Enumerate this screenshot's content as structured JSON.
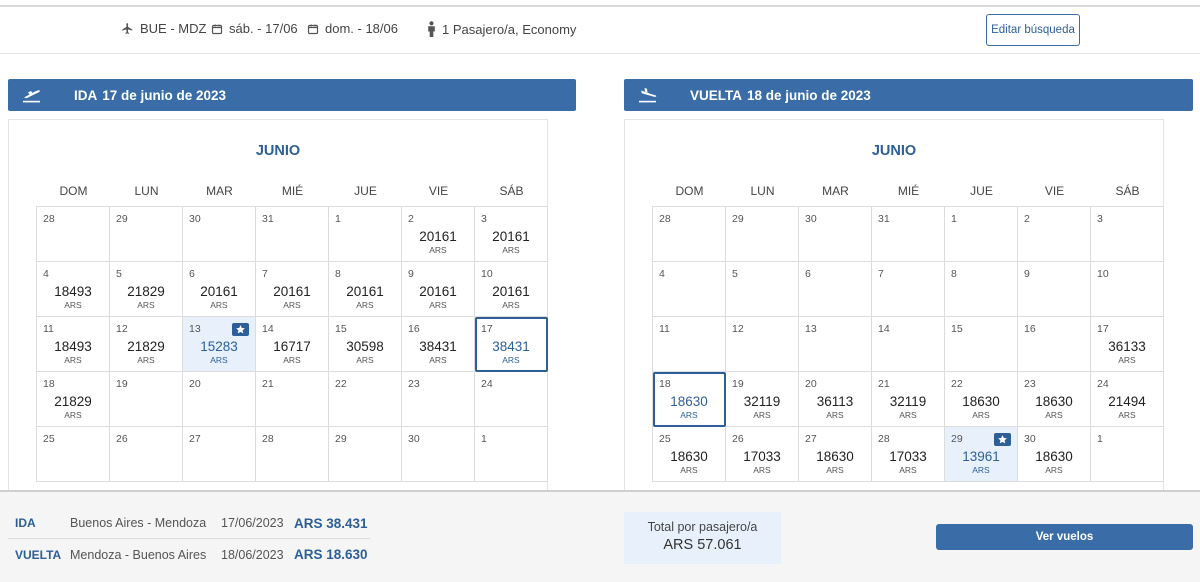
{
  "search": {
    "route": "BUE - MDZ",
    "depart_date": "sáb. - 17/06",
    "return_date": "dom. - 18/06",
    "passengers": "1 Pasajero/a, Economy",
    "edit_label": "Editar búsqueda"
  },
  "outbound": {
    "leg_label": "IDA",
    "date_label": "17 de junio de 2023",
    "month": "JUNIO",
    "weekdays": [
      "DOM",
      "LUN",
      "MAR",
      "MIÉ",
      "JUE",
      "VIE",
      "SÁB"
    ],
    "currency": "ARS",
    "cells": [
      {
        "day": "28",
        "price": ""
      },
      {
        "day": "29",
        "price": ""
      },
      {
        "day": "30",
        "price": ""
      },
      {
        "day": "31",
        "price": ""
      },
      {
        "day": "1",
        "price": ""
      },
      {
        "day": "2",
        "price": "20161"
      },
      {
        "day": "3",
        "price": "20161"
      },
      {
        "day": "4",
        "price": "18493"
      },
      {
        "day": "5",
        "price": "21829"
      },
      {
        "day": "6",
        "price": "20161"
      },
      {
        "day": "7",
        "price": "20161"
      },
      {
        "day": "8",
        "price": "20161"
      },
      {
        "day": "9",
        "price": "20161"
      },
      {
        "day": "10",
        "price": "20161"
      },
      {
        "day": "11",
        "price": "18493"
      },
      {
        "day": "12",
        "price": "21829"
      },
      {
        "day": "13",
        "price": "15283",
        "best": true
      },
      {
        "day": "14",
        "price": "16717"
      },
      {
        "day": "15",
        "price": "30598"
      },
      {
        "day": "16",
        "price": "38431"
      },
      {
        "day": "17",
        "price": "38431",
        "selected": true
      },
      {
        "day": "18",
        "price": "21829"
      },
      {
        "day": "19",
        "price": ""
      },
      {
        "day": "20",
        "price": ""
      },
      {
        "day": "21",
        "price": ""
      },
      {
        "day": "22",
        "price": ""
      },
      {
        "day": "23",
        "price": ""
      },
      {
        "day": "24",
        "price": ""
      },
      {
        "day": "25",
        "price": ""
      },
      {
        "day": "26",
        "price": ""
      },
      {
        "day": "27",
        "price": ""
      },
      {
        "day": "28",
        "price": ""
      },
      {
        "day": "29",
        "price": ""
      },
      {
        "day": "30",
        "price": ""
      },
      {
        "day": "1",
        "price": ""
      }
    ]
  },
  "return": {
    "leg_label": "VUELTA",
    "date_label": "18 de junio de 2023",
    "month": "JUNIO",
    "weekdays": [
      "DOM",
      "LUN",
      "MAR",
      "MIÉ",
      "JUE",
      "VIE",
      "SÁB"
    ],
    "currency": "ARS",
    "cells": [
      {
        "day": "28",
        "price": ""
      },
      {
        "day": "29",
        "price": ""
      },
      {
        "day": "30",
        "price": ""
      },
      {
        "day": "31",
        "price": ""
      },
      {
        "day": "1",
        "price": ""
      },
      {
        "day": "2",
        "price": ""
      },
      {
        "day": "3",
        "price": ""
      },
      {
        "day": "4",
        "price": ""
      },
      {
        "day": "5",
        "price": ""
      },
      {
        "day": "6",
        "price": ""
      },
      {
        "day": "7",
        "price": ""
      },
      {
        "day": "8",
        "price": ""
      },
      {
        "day": "9",
        "price": ""
      },
      {
        "day": "10",
        "price": ""
      },
      {
        "day": "11",
        "price": ""
      },
      {
        "day": "12",
        "price": ""
      },
      {
        "day": "13",
        "price": ""
      },
      {
        "day": "14",
        "price": ""
      },
      {
        "day": "15",
        "price": ""
      },
      {
        "day": "16",
        "price": ""
      },
      {
        "day": "17",
        "price": "36133"
      },
      {
        "day": "18",
        "price": "18630",
        "selected": true
      },
      {
        "day": "19",
        "price": "32119"
      },
      {
        "day": "20",
        "price": "36113"
      },
      {
        "day": "21",
        "price": "32119"
      },
      {
        "day": "22",
        "price": "18630"
      },
      {
        "day": "23",
        "price": "18630"
      },
      {
        "day": "24",
        "price": "21494"
      },
      {
        "day": "25",
        "price": "18630"
      },
      {
        "day": "26",
        "price": "17033"
      },
      {
        "day": "27",
        "price": "18630"
      },
      {
        "day": "28",
        "price": "17033"
      },
      {
        "day": "29",
        "price": "13961",
        "best": true
      },
      {
        "day": "30",
        "price": "18630"
      },
      {
        "day": "1",
        "price": ""
      }
    ]
  },
  "summary": {
    "outbound": {
      "leg": "IDA",
      "route": "Buenos Aires - Mendoza",
      "date": "17/06/2023",
      "price": "ARS 38.431"
    },
    "return": {
      "leg": "VUELTA",
      "route": "Mendoza - Buenos Aires",
      "date": "18/06/2023",
      "price": "ARS 18.630"
    },
    "total_label": "Total por pasajero/a",
    "total_value": "ARS 57.061",
    "cta_label": "Ver vuelos"
  },
  "colors": {
    "primary": "#3a6da8",
    "accent_text": "#2c5f98",
    "best_bg": "#e8f1fb"
  },
  "icons": {
    "route": "plane-icon",
    "dates": "calendar-icon",
    "passengers": "person-icon",
    "outbound": "takeoff-icon",
    "return": "landing-icon",
    "best_price": "star-badge-icon"
  }
}
